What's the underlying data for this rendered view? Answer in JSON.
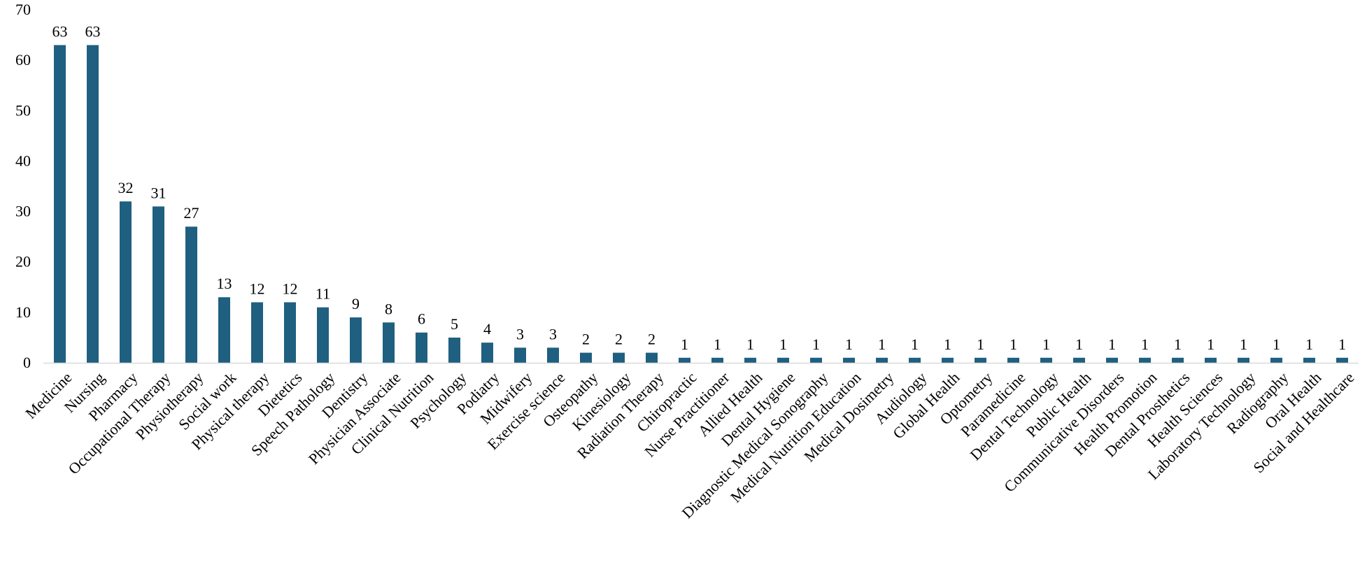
{
  "chart_data": {
    "type": "bar",
    "title": "",
    "xlabel": "",
    "ylabel": "",
    "ylim": [
      0,
      70
    ],
    "yticks": [
      0,
      10,
      20,
      30,
      40,
      50,
      60,
      70
    ],
    "grid": false,
    "legend": "none",
    "bar_color": "#1f5f80",
    "categories": [
      "Medicine",
      "Nursing",
      "Pharmacy",
      "Occupational Therapy",
      "Physiotherapy",
      "Social work",
      "Physical therapy",
      "Dietetics",
      "Speech Pathology",
      "Dentistry",
      "Physician Associate",
      "Clinical Nutrition",
      "Psychology",
      "Podiatry",
      "Midwifery",
      "Exercise science",
      "Osteopathy",
      "Kinesiology",
      "Radiation Therapy",
      "Chiropractic",
      "Nurse Practitioner",
      "Allied Health",
      "Dental Hygiene",
      "Diagnostic Medical Sonography",
      "Medical Nutrition Education",
      "Medical Dosimetry",
      "Audiology",
      "Global Health",
      "Optometry",
      "Paramedicine",
      "Dental Technology",
      "Public Health",
      "Communicative Disorders",
      "Health Promotion",
      "Dental Prosthetics",
      "Health Sciences",
      "Laboratory Technology",
      "Radiography",
      "Oral Health",
      "Social and Healthcare"
    ],
    "values": [
      63,
      63,
      32,
      31,
      27,
      13,
      12,
      12,
      11,
      9,
      8,
      6,
      5,
      4,
      3,
      3,
      2,
      2,
      2,
      1,
      1,
      1,
      1,
      1,
      1,
      1,
      1,
      1,
      1,
      1,
      1,
      1,
      1,
      1,
      1,
      1,
      1,
      1,
      1,
      1
    ]
  }
}
